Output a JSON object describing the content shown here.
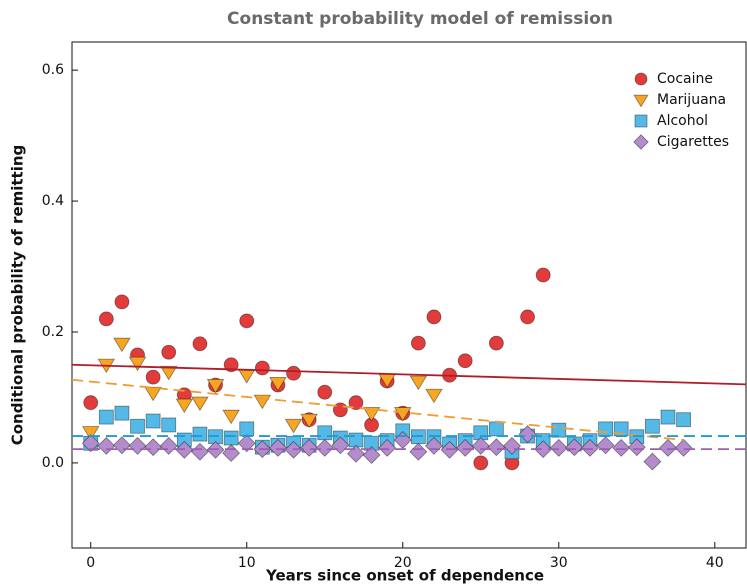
{
  "chart_data": {
    "type": "scatter",
    "title": "Constant probability model of remission",
    "x_label": "Years since onset of dependence",
    "y_label": "Conditional probability of remitting",
    "xlim": [
      -1.2,
      42
    ],
    "ylim": [
      -0.13,
      0.643
    ],
    "xticks": [
      0,
      10,
      20,
      30,
      40
    ],
    "yticks": [
      {
        "value": 0,
        "label": "0.0"
      },
      0.2,
      0.4,
      0.6
    ],
    "legend": "upper right",
    "series": [
      {
        "name": "Cocaine",
        "color": "#e23b3b",
        "marker": "circle",
        "x": [
          0,
          1,
          2,
          3,
          4,
          5,
          6,
          7,
          8,
          9,
          10,
          11,
          12,
          13,
          14,
          15,
          16,
          17,
          18,
          19,
          20,
          21,
          22,
          23,
          24,
          25,
          26,
          27,
          28,
          29
        ],
        "values": [
          0.092,
          0.22,
          0.246,
          0.165,
          0.131,
          0.169,
          0.104,
          0.182,
          0.119,
          0.15,
          0.217,
          0.145,
          0.119,
          0.137,
          0.066,
          0.108,
          0.081,
          0.092,
          0.058,
          0.125,
          0.076,
          0.183,
          0.223,
          0.134,
          0.156,
          0.0,
          0.183,
          0.0,
          0.223,
          0.287
        ],
        "trend": {
          "color": "#b01c2a",
          "dash": false,
          "x": [
            -1.2,
            42
          ],
          "values": [
            0.15,
            0.12
          ]
        }
      },
      {
        "name": "Marijuana",
        "color": "#f6a623",
        "marker": "triangle",
        "x": [
          0,
          1,
          2,
          3,
          4,
          5,
          6,
          7,
          8,
          9,
          10,
          11,
          12,
          13,
          14,
          18,
          19,
          20,
          21,
          22
        ],
        "values": [
          0.047,
          0.15,
          0.182,
          0.153,
          0.107,
          0.139,
          0.089,
          0.092,
          0.119,
          0.072,
          0.134,
          0.095,
          0.122,
          0.058,
          0.066,
          0.076,
          0.127,
          0.076,
          0.124,
          0.104
        ],
        "trend": {
          "color": "#f29b30",
          "dash": true,
          "x": [
            -1.2,
            38
          ],
          "values": [
            0.127,
            0.035
          ]
        }
      },
      {
        "name": "Alcohol",
        "color": "#54b9e6",
        "marker": "square",
        "x": [
          0,
          1,
          2,
          3,
          4,
          5,
          6,
          7,
          8,
          9,
          10,
          11,
          12,
          13,
          14,
          15,
          16,
          17,
          18,
          19,
          20,
          21,
          22,
          23,
          24,
          25,
          26,
          27,
          28,
          29,
          30,
          31,
          32,
          33,
          34,
          35,
          36,
          37,
          38
        ],
        "values": [
          0.03,
          0.07,
          0.076,
          0.056,
          0.064,
          0.058,
          0.035,
          0.044,
          0.04,
          0.038,
          0.052,
          0.024,
          0.027,
          0.03,
          0.027,
          0.046,
          0.038,
          0.035,
          0.03,
          0.034,
          0.049,
          0.04,
          0.04,
          0.029,
          0.034,
          0.046,
          0.052,
          0.017,
          0.041,
          0.034,
          0.05,
          0.029,
          0.034,
          0.052,
          0.052,
          0.04,
          0.056,
          0.07,
          0.066
        ],
        "trend": {
          "color": "#1f9ad6",
          "dash": true,
          "x": [
            -1.2,
            42
          ],
          "values": [
            0.041,
            0.041
          ]
        }
      },
      {
        "name": "Cigarettes",
        "color": "#b48ccb",
        "marker": "diamond",
        "x": [
          0,
          1,
          2,
          3,
          4,
          5,
          6,
          7,
          8,
          9,
          10,
          11,
          12,
          13,
          14,
          15,
          16,
          17,
          18,
          19,
          20,
          21,
          22,
          23,
          24,
          25,
          26,
          27,
          28,
          29,
          30,
          31,
          32,
          33,
          34,
          35,
          36,
          37,
          38
        ],
        "values": [
          0.03,
          0.026,
          0.027,
          0.026,
          0.024,
          0.026,
          0.02,
          0.017,
          0.02,
          0.015,
          0.03,
          0.021,
          0.023,
          0.02,
          0.023,
          0.023,
          0.027,
          0.014,
          0.012,
          0.023,
          0.035,
          0.017,
          0.026,
          0.02,
          0.023,
          0.026,
          0.024,
          0.026,
          0.044,
          0.021,
          0.023,
          0.024,
          0.023,
          0.027,
          0.023,
          0.024,
          0.002,
          0.023,
          0.023
        ],
        "trend": {
          "color": "#9a5fb4",
          "dash": true,
          "x": [
            -1.2,
            42
          ],
          "values": [
            0.021,
            0.021
          ]
        }
      }
    ]
  }
}
